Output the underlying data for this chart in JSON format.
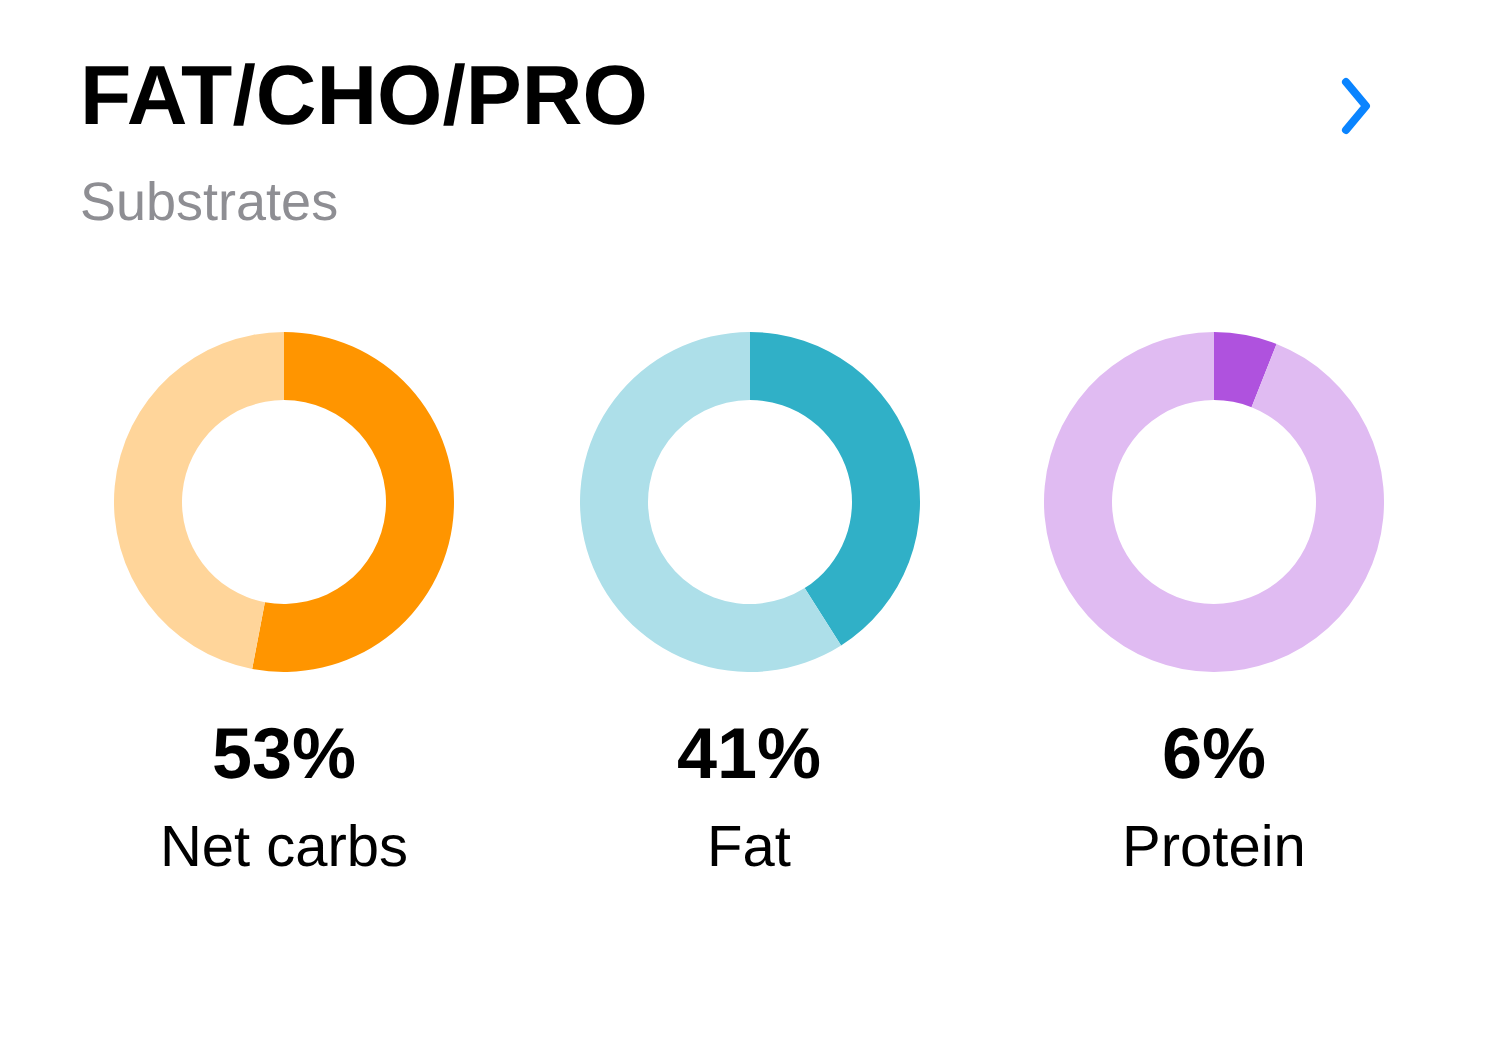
{
  "chart_data": [
    {
      "type": "other",
      "title": "FAT/CHO/PRO",
      "subtitle": "Substrates"
    },
    {
      "type": "donut",
      "title": "Net carbs",
      "annotations": [
        "53%"
      ],
      "categories": [
        null,
        null
      ],
      "values": [
        53,
        47
      ],
      "colors": [
        "#ff9500",
        "#ffd59a"
      ]
    },
    {
      "type": "donut",
      "title": "Fat",
      "annotations": [
        "41%"
      ],
      "categories": [
        null,
        null
      ],
      "values": [
        41,
        59
      ],
      "colors": [
        "#30b0c7",
        "#addfe9"
      ]
    },
    {
      "type": "donut",
      "title": "Protein",
      "annotations": [
        "6%"
      ],
      "categories": [
        null,
        null
      ],
      "values": [
        6,
        94
      ],
      "colors": [
        "#af52de",
        "#e0bbf2"
      ]
    }
  ]
}
